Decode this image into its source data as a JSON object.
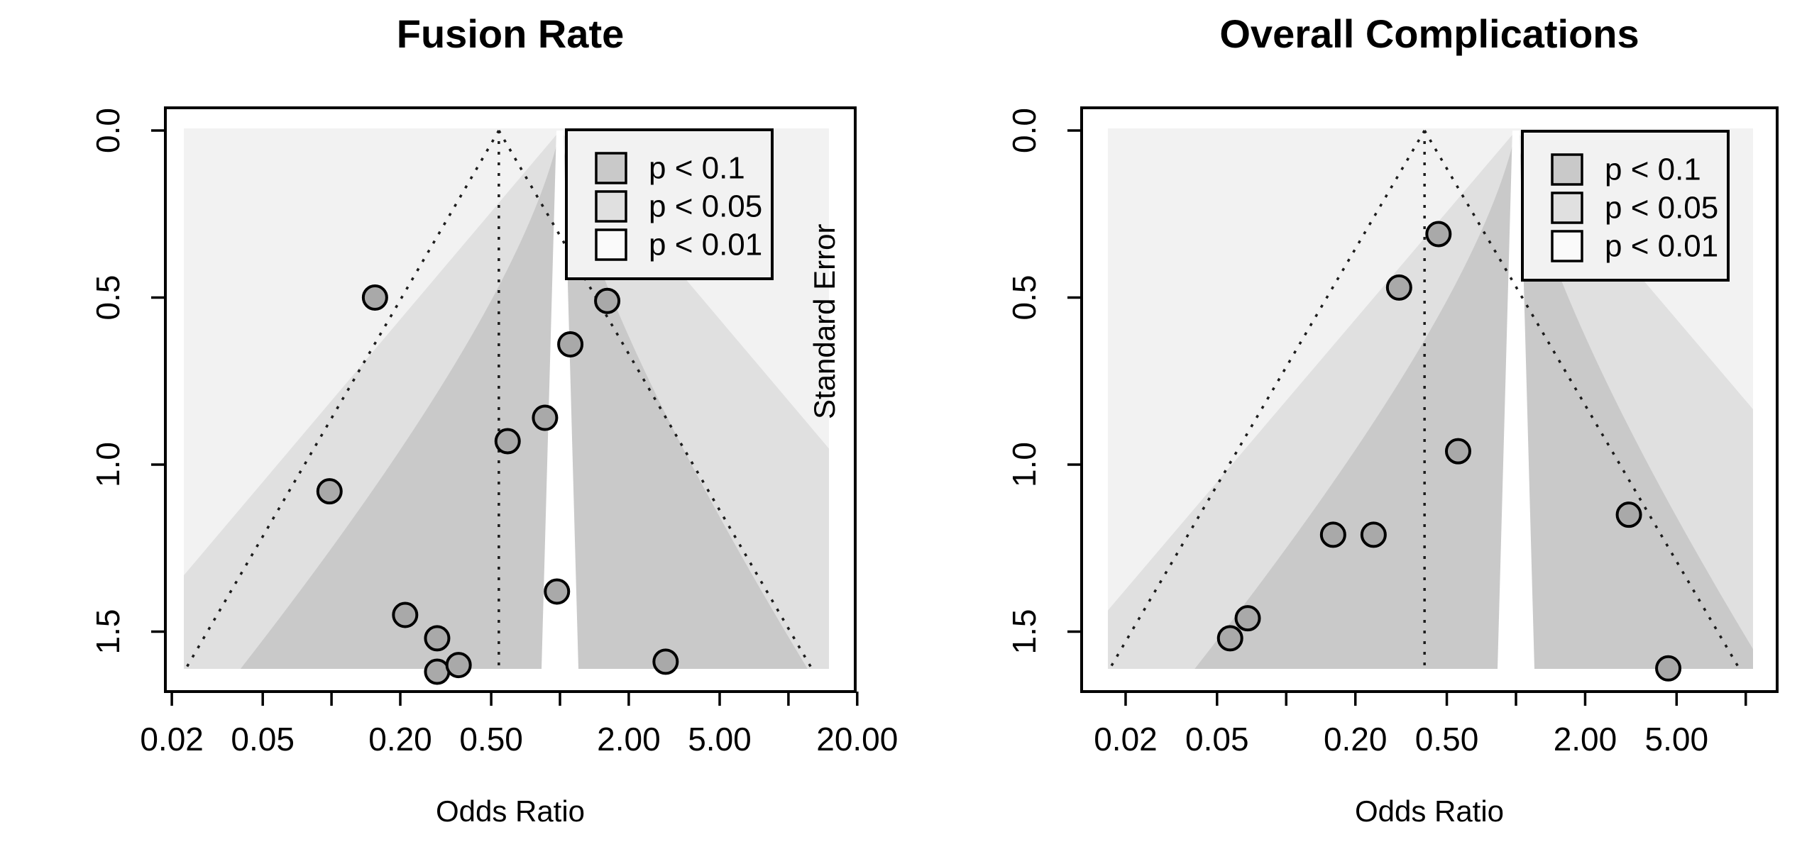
{
  "figure": {
    "background": "#ffffff"
  },
  "colors": {
    "shade_p01_region": "#f2f2f2",
    "shade_p05_region": "#e0e0e0",
    "shade_p10_region": "#c9c9c9",
    "nonsig_channel": "#ffffff",
    "point_fill": "#a9a9a9",
    "point_stroke": "#000000",
    "axis_line": "#000000",
    "dotted_line": "#1c1c1c",
    "legend_bg": "#f2f2f2",
    "legend_border": "#000000"
  },
  "legend": {
    "items": [
      {
        "label": "p < 0.1",
        "fill": "#c9c9c9"
      },
      {
        "label": "p < 0.05",
        "fill": "#e0e0e0"
      },
      {
        "label": "p < 0.01",
        "fill": "#fafafa"
      }
    ]
  },
  "chart_data": [
    {
      "type": "scatter",
      "subtype": "contour-enhanced-funnel-plot",
      "title": "Fusion Rate",
      "xlabel": "Odds Ratio",
      "ylabel": "Standard Error",
      "x_scale": "log",
      "xlim": [
        0.019,
        19.6
      ],
      "se_range": [
        0.0,
        1.72
      ],
      "y_axis_inverted": true,
      "grid": false,
      "legend_position": "top-right",
      "x_tick_labels": [
        "0.02",
        "0.05",
        "0.20",
        "0.50",
        "2.00",
        "5.00",
        "20.00"
      ],
      "x_ticks_unlabeled": [
        0.1,
        1.0,
        10.0
      ],
      "y_tick_labels": [
        "0.0",
        "0.5",
        "1.0",
        "1.5"
      ],
      "pooled_or": 0.54,
      "funnel_ci_z": 1.96,
      "funnel_se_max": 1.61,
      "contour_z": {
        "inner": [
          2.0,
          1.55
        ],
        "outer": [
          2.85,
          2.85
        ]
      },
      "points": [
        {
          "or": 0.155,
          "se": 0.5
        },
        {
          "or": 1.61,
          "se": 0.51
        },
        {
          "or": 1.11,
          "se": 0.64
        },
        {
          "or": 0.86,
          "se": 0.86
        },
        {
          "or": 0.59,
          "se": 0.93
        },
        {
          "or": 0.098,
          "se": 1.08
        },
        {
          "or": 0.97,
          "se": 1.38
        },
        {
          "or": 0.21,
          "se": 1.45
        },
        {
          "or": 0.29,
          "se": 1.52
        },
        {
          "or": 0.29,
          "se": 1.62
        },
        {
          "or": 0.36,
          "se": 1.6
        },
        {
          "or": 2.9,
          "se": 1.59
        }
      ]
    },
    {
      "type": "scatter",
      "subtype": "contour-enhanced-funnel-plot",
      "title": "Overall Complications",
      "xlabel": "Odds Ratio",
      "ylabel": "Standard Error",
      "x_scale": "log",
      "xlim": [
        0.013,
        13.7
      ],
      "se_range": [
        0.0,
        1.72
      ],
      "y_axis_inverted": true,
      "grid": false,
      "legend_position": "top-right",
      "x_tick_labels": [
        "0.02",
        "0.05",
        "0.20",
        "0.50",
        "2.00",
        "5.00"
      ],
      "x_ticks_unlabeled": [
        0.1,
        1.0,
        10.0
      ],
      "y_tick_labels": [
        "0.0",
        "0.5",
        "1.0",
        "1.5"
      ],
      "pooled_or": 0.4,
      "funnel_ci_z": 1.96,
      "funnel_se_max": 1.61,
      "contour_z": {
        "inner": [
          2.0,
          1.55
        ],
        "outer": [
          2.85,
          2.85
        ]
      },
      "points": [
        {
          "or": 0.46,
          "se": 0.31
        },
        {
          "or": 0.31,
          "se": 0.47
        },
        {
          "or": 0.56,
          "se": 0.96
        },
        {
          "or": 3.1,
          "se": 1.15
        },
        {
          "or": 0.16,
          "se": 1.21
        },
        {
          "or": 0.24,
          "se": 1.21
        },
        {
          "or": 0.068,
          "se": 1.46
        },
        {
          "or": 0.057,
          "se": 1.52
        },
        {
          "or": 4.6,
          "se": 1.61
        }
      ]
    }
  ]
}
